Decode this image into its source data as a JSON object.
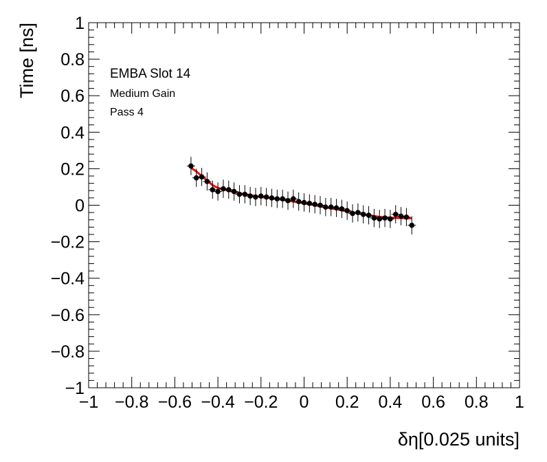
{
  "chart_data": {
    "type": "scatter",
    "xlabel": "δη[0.025 units]",
    "ylabel": "Time [ns]",
    "xlim": [
      -1,
      1
    ],
    "ylim": [
      -1,
      1
    ],
    "x_ticks": [
      "−1",
      "−0.8",
      "−0.6",
      "−0.4",
      "−0.2",
      "0",
      "0.2",
      "0.4",
      "0.6",
      "0.8",
      "1"
    ],
    "y_ticks": [
      "−1",
      "−0.8",
      "−0.6",
      "−0.4",
      "−0.2",
      "0",
      "0.2",
      "0.4",
      "0.6",
      "0.8",
      "1"
    ],
    "annotations": [
      "EMBA Slot 14",
      "Medium Gain",
      "Pass 4"
    ],
    "grid": false,
    "series": [
      {
        "marker": "circle",
        "color": "#000000",
        "points": [
          {
            "x": -0.525,
            "y": 0.215,
            "err": 0.05
          },
          {
            "x": -0.5,
            "y": 0.15,
            "err": 0.05
          },
          {
            "x": -0.475,
            "y": 0.155,
            "err": 0.05
          },
          {
            "x": -0.45,
            "y": 0.13,
            "err": 0.05
          },
          {
            "x": -0.425,
            "y": 0.085,
            "err": 0.05
          },
          {
            "x": -0.4,
            "y": 0.075,
            "err": 0.05
          },
          {
            "x": -0.375,
            "y": 0.09,
            "err": 0.05
          },
          {
            "x": -0.35,
            "y": 0.085,
            "err": 0.05
          },
          {
            "x": -0.325,
            "y": 0.075,
            "err": 0.05
          },
          {
            "x": -0.3,
            "y": 0.06,
            "err": 0.05
          },
          {
            "x": -0.275,
            "y": 0.06,
            "err": 0.05
          },
          {
            "x": -0.25,
            "y": 0.05,
            "err": 0.05
          },
          {
            "x": -0.225,
            "y": 0.045,
            "err": 0.05
          },
          {
            "x": -0.2,
            "y": 0.05,
            "err": 0.05
          },
          {
            "x": -0.175,
            "y": 0.045,
            "err": 0.05
          },
          {
            "x": -0.15,
            "y": 0.04,
            "err": 0.05
          },
          {
            "x": -0.125,
            "y": 0.035,
            "err": 0.05
          },
          {
            "x": -0.1,
            "y": 0.035,
            "err": 0.05
          },
          {
            "x": -0.075,
            "y": 0.025,
            "err": 0.05
          },
          {
            "x": -0.05,
            "y": 0.035,
            "err": 0.05
          },
          {
            "x": -0.025,
            "y": 0.02,
            "err": 0.05
          },
          {
            "x": 0.0,
            "y": 0.015,
            "err": 0.05
          },
          {
            "x": 0.025,
            "y": 0.01,
            "err": 0.05
          },
          {
            "x": 0.05,
            "y": 0.005,
            "err": 0.05
          },
          {
            "x": 0.075,
            "y": 0.0,
            "err": 0.05
          },
          {
            "x": 0.1,
            "y": -0.01,
            "err": 0.05
          },
          {
            "x": 0.125,
            "y": -0.01,
            "err": 0.05
          },
          {
            "x": 0.15,
            "y": -0.015,
            "err": 0.05
          },
          {
            "x": 0.175,
            "y": -0.02,
            "err": 0.05
          },
          {
            "x": 0.2,
            "y": -0.03,
            "err": 0.05
          },
          {
            "x": 0.225,
            "y": -0.045,
            "err": 0.05
          },
          {
            "x": 0.25,
            "y": -0.04,
            "err": 0.05
          },
          {
            "x": 0.275,
            "y": -0.05,
            "err": 0.05
          },
          {
            "x": 0.3,
            "y": -0.055,
            "err": 0.05
          },
          {
            "x": 0.325,
            "y": -0.07,
            "err": 0.05
          },
          {
            "x": 0.35,
            "y": -0.075,
            "err": 0.05
          },
          {
            "x": 0.375,
            "y": -0.07,
            "err": 0.05
          },
          {
            "x": 0.4,
            "y": -0.075,
            "err": 0.05
          },
          {
            "x": 0.425,
            "y": -0.05,
            "err": 0.05
          },
          {
            "x": 0.45,
            "y": -0.06,
            "err": 0.05
          },
          {
            "x": 0.475,
            "y": -0.065,
            "err": 0.05
          },
          {
            "x": 0.5,
            "y": -0.11,
            "err": 0.05
          }
        ]
      },
      {
        "type": "line",
        "color": "#ff0000",
        "x": [
          -0.525,
          -0.5,
          -0.475,
          -0.45,
          -0.425,
          -0.4,
          -0.35,
          -0.3,
          -0.25,
          -0.2,
          -0.15,
          -0.1,
          -0.05,
          0.0,
          0.05,
          0.1,
          0.15,
          0.2,
          0.25,
          0.3,
          0.35,
          0.4,
          0.45,
          0.5
        ],
        "y": [
          0.205,
          0.185,
          0.16,
          0.135,
          0.11,
          0.095,
          0.08,
          0.065,
          0.055,
          0.045,
          0.038,
          0.03,
          0.02,
          0.01,
          0.0,
          -0.012,
          -0.022,
          -0.034,
          -0.045,
          -0.055,
          -0.064,
          -0.068,
          -0.07,
          -0.072
        ]
      }
    ]
  }
}
